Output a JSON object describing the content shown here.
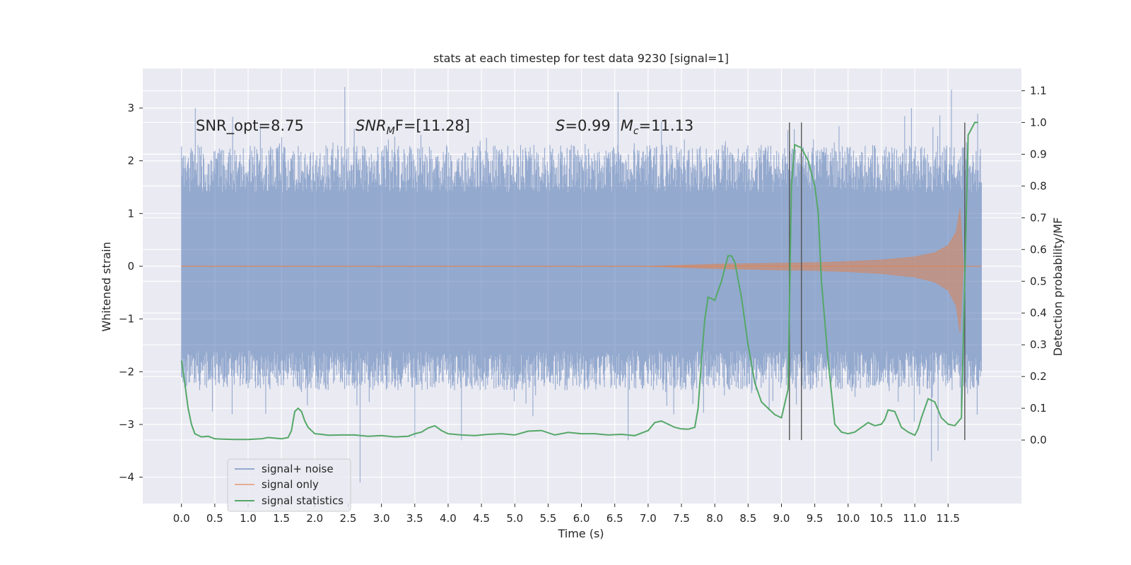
{
  "chart_data": {
    "type": "line",
    "title": "stats at each timestep for test data 9230 [signal=1]",
    "xlabel": "Time (s)",
    "ylabel": "Whitened strain",
    "y2label": "Detection probability/MF",
    "xlim": [
      -0.58,
      12.6
    ],
    "ylim": [
      -4.5,
      3.75
    ],
    "y2lim": [
      -0.2,
      1.17
    ],
    "x_ticks": [
      0.0,
      0.5,
      1.0,
      1.5,
      2.0,
      2.5,
      3.0,
      3.5,
      4.0,
      4.5,
      5.0,
      5.5,
      6.0,
      6.5,
      7.0,
      7.5,
      8.0,
      8.5,
      9.0,
      9.5,
      10.0,
      10.5,
      11.0,
      11.5
    ],
    "x_tick_labels": [
      "0.0",
      "0.5",
      "1.0",
      "1.5",
      "2.0",
      "2.5",
      "3.0",
      "3.5",
      "4.0",
      "4.5",
      "5.0",
      "5.5",
      "6.0",
      "6.5",
      "7.0",
      "7.5",
      "8.0",
      "8.5",
      "9.0",
      "9.5",
      "10.0",
      "10.5",
      "11.0",
      "11.5"
    ],
    "y_ticks": [
      3,
      2,
      1,
      0,
      -1,
      -2,
      -3,
      -4
    ],
    "y_tick_labels": [
      "3",
      "2",
      "1",
      "0",
      "−1",
      "−2",
      "−3",
      "−4"
    ],
    "y2_ticks": [
      1.1,
      1.0,
      0.9,
      0.8,
      0.7,
      0.6,
      0.5,
      0.4,
      0.3,
      0.2,
      0.1,
      0.0
    ],
    "y2_tick_labels": [
      "1.1",
      "1.0",
      "0.9",
      "0.8",
      "0.7",
      "0.6",
      "0.5",
      "0.4",
      "0.3",
      "0.2",
      "0.1",
      "0.0"
    ],
    "grid": true,
    "legend_position": "lower-left",
    "series": [
      {
        "name": "signal+ noise",
        "color": "#4c72b0",
        "axis": "left",
        "x_range": [
          0.0,
          12.0
        ],
        "typical_range": [
          -1.6,
          1.4
        ],
        "peaks": [
          {
            "x": 2.45,
            "y": 3.4
          },
          {
            "x": 6.55,
            "y": 3.3
          },
          {
            "x": 11.55,
            "y": 3.35
          },
          {
            "x": 10.95,
            "y": 3.0
          },
          {
            "x": 2.68,
            "y": -4.1
          },
          {
            "x": 11.25,
            "y": -3.7
          },
          {
            "x": 11.35,
            "y": -3.5
          },
          {
            "x": 3.5,
            "y": -3.25
          },
          {
            "x": 4.2,
            "y": -3.3
          },
          {
            "x": 6.7,
            "y": -3.3
          }
        ]
      },
      {
        "name": "signal only",
        "color": "#dd8452",
        "axis": "left",
        "envelope": [
          {
            "x": 0.0,
            "y": 0.0
          },
          {
            "x": 7.0,
            "y": 0.0
          },
          {
            "x": 7.5,
            "y": 0.02
          },
          {
            "x": 8.0,
            "y": 0.04
          },
          {
            "x": 8.5,
            "y": 0.05
          },
          {
            "x": 9.0,
            "y": 0.06
          },
          {
            "x": 9.5,
            "y": 0.07
          },
          {
            "x": 10.0,
            "y": 0.09
          },
          {
            "x": 10.5,
            "y": 0.12
          },
          {
            "x": 11.0,
            "y": 0.18
          },
          {
            "x": 11.3,
            "y": 0.26
          },
          {
            "x": 11.5,
            "y": 0.4
          },
          {
            "x": 11.62,
            "y": 0.65
          },
          {
            "x": 11.68,
            "y": 1.1
          }
        ]
      },
      {
        "name": "signal statistics",
        "color": "#55a868",
        "axis": "right",
        "x": [
          0.0,
          0.05,
          0.1,
          0.15,
          0.2,
          0.3,
          0.4,
          0.5,
          0.6,
          0.8,
          1.0,
          1.2,
          1.3,
          1.4,
          1.5,
          1.6,
          1.65,
          1.7,
          1.75,
          1.8,
          1.85,
          1.9,
          2.0,
          2.1,
          2.2,
          2.4,
          2.6,
          2.8,
          3.0,
          3.2,
          3.4,
          3.5,
          3.6,
          3.7,
          3.8,
          3.9,
          4.0,
          4.2,
          4.4,
          4.6,
          4.8,
          5.0,
          5.2,
          5.4,
          5.6,
          5.8,
          6.0,
          6.2,
          6.4,
          6.6,
          6.8,
          7.0,
          7.1,
          7.2,
          7.3,
          7.4,
          7.5,
          7.6,
          7.7,
          7.75,
          7.8,
          7.85,
          7.9,
          8.0,
          8.1,
          8.2,
          8.25,
          8.3,
          8.4,
          8.5,
          8.6,
          8.7,
          8.8,
          8.9,
          9.0,
          9.1,
          9.15,
          9.2,
          9.3,
          9.4,
          9.5,
          9.55,
          9.6,
          9.7,
          9.8,
          9.9,
          10.0,
          10.1,
          10.2,
          10.3,
          10.4,
          10.5,
          10.55,
          10.6,
          10.7,
          10.8,
          10.9,
          11.0,
          11.05,
          11.1,
          11.2,
          11.3,
          11.4,
          11.5,
          11.6,
          11.7,
          11.75,
          11.8,
          11.85,
          11.9,
          11.95
        ],
        "y": [
          0.25,
          0.18,
          0.1,
          0.05,
          0.02,
          0.01,
          0.012,
          0.004,
          0.003,
          0.002,
          0.002,
          0.004,
          0.008,
          0.006,
          0.004,
          0.008,
          0.03,
          0.09,
          0.1,
          0.09,
          0.06,
          0.04,
          0.02,
          0.018,
          0.015,
          0.016,
          0.016,
          0.012,
          0.014,
          0.01,
          0.012,
          0.02,
          0.025,
          0.038,
          0.045,
          0.03,
          0.02,
          0.016,
          0.014,
          0.018,
          0.02,
          0.016,
          0.028,
          0.03,
          0.016,
          0.024,
          0.02,
          0.02,
          0.016,
          0.018,
          0.014,
          0.03,
          0.055,
          0.06,
          0.05,
          0.04,
          0.035,
          0.034,
          0.04,
          0.1,
          0.25,
          0.38,
          0.45,
          0.44,
          0.5,
          0.58,
          0.58,
          0.56,
          0.45,
          0.3,
          0.18,
          0.12,
          0.1,
          0.08,
          0.07,
          0.16,
          0.8,
          0.93,
          0.92,
          0.88,
          0.8,
          0.72,
          0.5,
          0.25,
          0.05,
          0.025,
          0.02,
          0.025,
          0.04,
          0.055,
          0.045,
          0.05,
          0.065,
          0.095,
          0.09,
          0.04,
          0.025,
          0.015,
          0.035,
          0.07,
          0.13,
          0.12,
          0.07,
          0.05,
          0.045,
          0.07,
          0.5,
          0.96,
          0.98,
          1.0,
          1.0
        ]
      }
    ],
    "vertical_lines": [
      9.12,
      9.3,
      11.75
    ],
    "annotations": [
      {
        "text": "SNR_opt=8.75",
        "x": 0.2,
        "y": 2.6
      },
      {
        "text": "SNR",
        "sub": "M",
        "suffix": "F=[11.28]",
        "x": 2.6,
        "y": 2.6
      },
      {
        "text": "S",
        "suffix": "=0.99",
        "text2": "M",
        "sub2": "c",
        "suffix2": "=11.13",
        "x": 5.6,
        "y": 2.6
      }
    ],
    "legend_entries": [
      "signal+ noise",
      "signal only",
      "signal statistics"
    ]
  }
}
